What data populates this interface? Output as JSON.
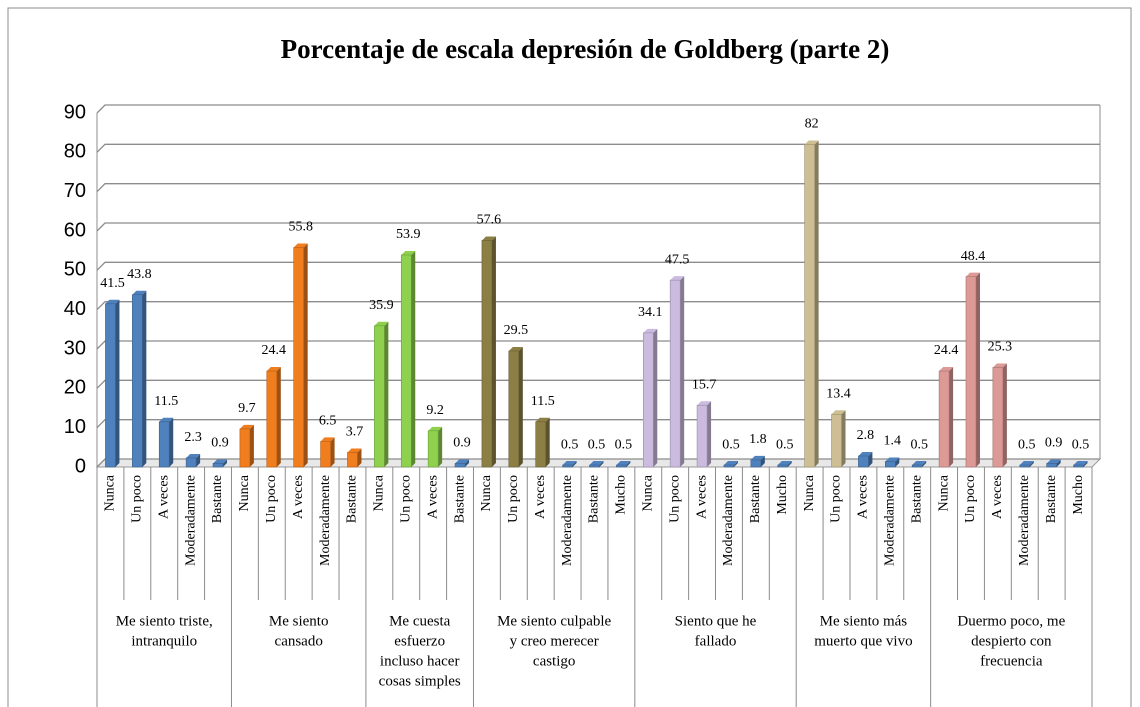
{
  "chart_data": {
    "type": "bar",
    "title": "Porcentaje de escala depresión de Goldberg (parte 2)",
    "ylim": [
      0,
      90
    ],
    "yticks": [
      0,
      10,
      20,
      30,
      40,
      50,
      60,
      70,
      80,
      90
    ],
    "grid": true,
    "groups": [
      {
        "label": [
          "Me siento triste,",
          "intranquilo"
        ],
        "categories": [
          "Nunca",
          "Un poco",
          "A veces",
          "Moderadamente",
          "Bastante"
        ],
        "values": [
          41.5,
          43.8,
          11.5,
          2.3,
          0.9
        ],
        "colors": [
          "#4f81bd",
          "#4f81bd",
          "#4f81bd",
          "#4f81bd",
          "#4f81bd"
        ]
      },
      {
        "label": [
          "Me siento",
          "cansado"
        ],
        "categories": [
          "Nunca",
          "Un poco",
          "A veces",
          "Moderadamente",
          "Bastante"
        ],
        "values": [
          9.7,
          24.4,
          55.8,
          6.5,
          3.7
        ],
        "colors": [
          "#f07d1e",
          "#f07d1e",
          "#f07d1e",
          "#f07d1e",
          "#f07d1e"
        ]
      },
      {
        "label": [
          "Me cuesta",
          "esfuerzo",
          "incluso hacer",
          "cosas simples"
        ],
        "categories": [
          "Nunca",
          "Un poco",
          "A veces",
          "Bastante"
        ],
        "values": [
          35.9,
          53.9,
          9.2,
          0.9
        ],
        "colors": [
          "#8fd14f",
          "#8fd14f",
          "#8fd14f",
          "#4f81bd"
        ]
      },
      {
        "label": [
          "Me siento culpable",
          "y creo merecer",
          "castigo"
        ],
        "categories": [
          "Nunca",
          "Un poco",
          "A veces",
          "Moderadamente",
          "Bastante",
          "Mucho"
        ],
        "values": [
          57.6,
          29.5,
          11.5,
          0.5,
          0.5,
          0.5
        ],
        "colors": [
          "#8c7f45",
          "#8c7f45",
          "#8c7f45",
          "#4f81bd",
          "#4f81bd",
          "#4f81bd"
        ]
      },
      {
        "label": [
          "Siento que he",
          "fallado"
        ],
        "categories": [
          "Nunca",
          "Un poco",
          "A veces",
          "Moderadamente",
          "Bastante",
          "Mucho"
        ],
        "values": [
          34.1,
          47.5,
          15.7,
          0.5,
          1.8,
          0.5
        ],
        "colors": [
          "#cbbbdf",
          "#cbbbdf",
          "#cbbbdf",
          "#4f81bd",
          "#4f81bd",
          "#4f81bd"
        ]
      },
      {
        "label": [
          "Me siento más",
          "muerto que vivo"
        ],
        "categories": [
          "Nunca",
          "Un poco",
          "A veces",
          "Moderadamente",
          "Bastante"
        ],
        "values": [
          82,
          13.4,
          2.8,
          1.4,
          0.5
        ],
        "colors": [
          "#cdbf93",
          "#cdbf93",
          "#4f81bd",
          "#4f81bd",
          "#4f81bd"
        ]
      },
      {
        "label": [
          "Duermo poco, me",
          "despierto con",
          "frecuencia"
        ],
        "categories": [
          "Nunca",
          "Un poco",
          "A veces",
          "Moderadamente",
          "Bastante",
          "Mucho"
        ],
        "values": [
          24.4,
          48.4,
          25.3,
          0.5,
          0.9,
          0.5
        ],
        "colors": [
          "#dc9996",
          "#dc9996",
          "#dc9996",
          "#4f81bd",
          "#4f81bd",
          "#4f81bd"
        ]
      }
    ]
  }
}
